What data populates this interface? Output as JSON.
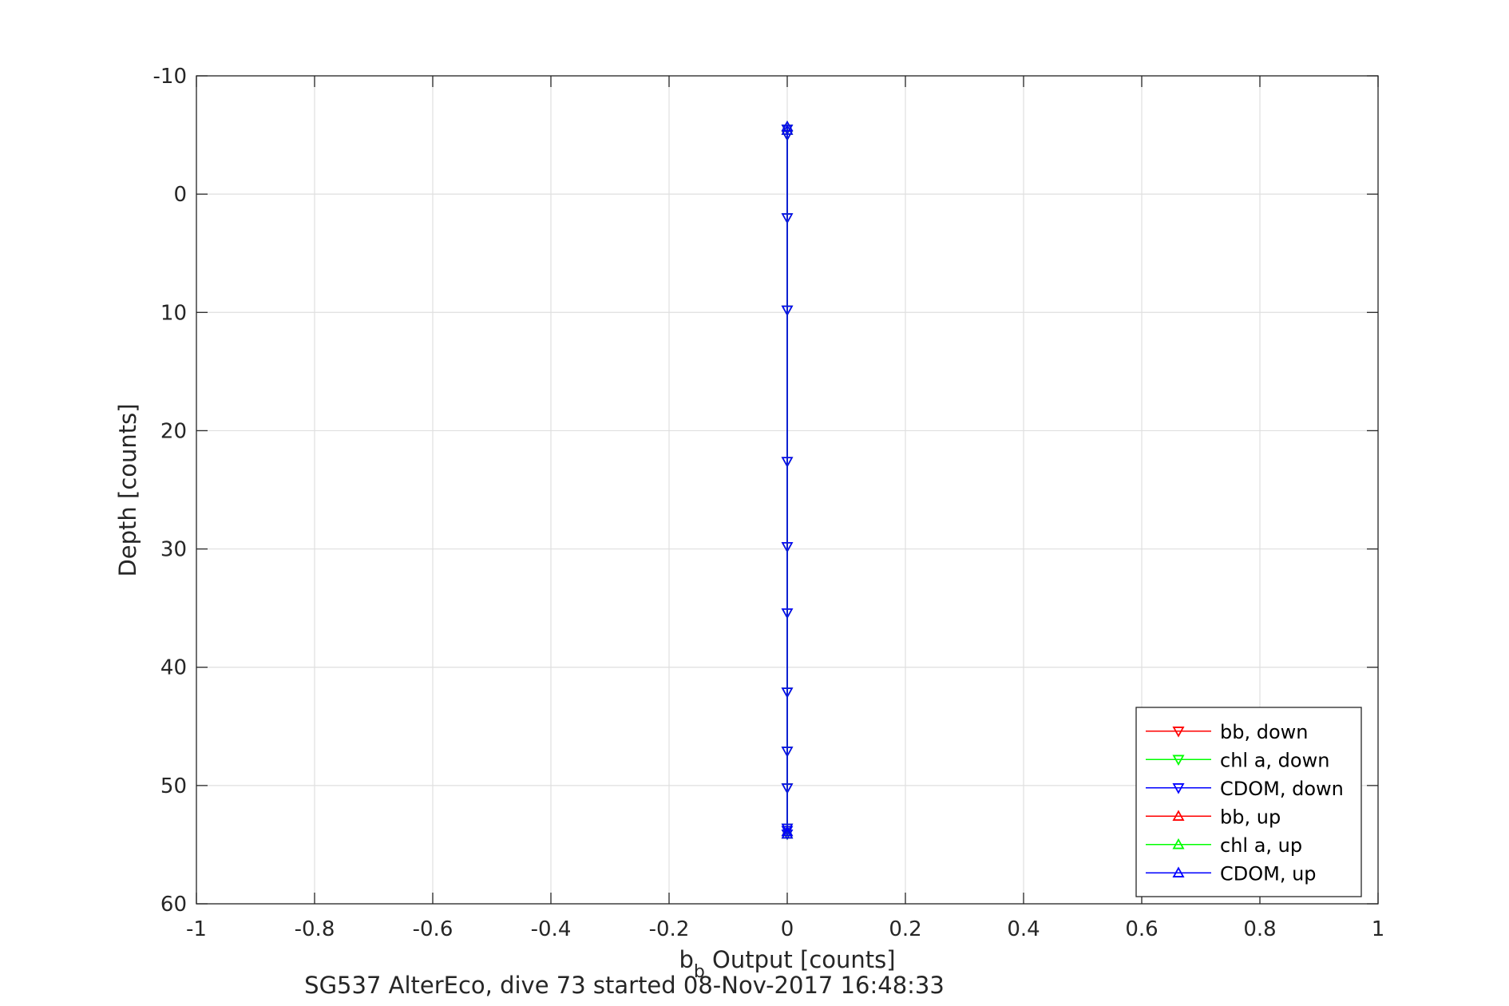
{
  "chart_data": {
    "type": "line",
    "title": "",
    "caption": "SG537 AlterEco, dive 73 started 08-Nov-2017 16:48:33",
    "xlabel": {
      "base": "b",
      "subscript": "b",
      "rest": " Output [counts]"
    },
    "ylabel": "Depth [counts]",
    "xlim": [
      -1,
      1
    ],
    "ylim": [
      -10,
      60
    ],
    "y_reversed": true,
    "grid": true,
    "legend_position": "bottom-right",
    "x_ticks": [
      -1,
      -0.8,
      -0.6,
      -0.4,
      -0.2,
      0,
      0.2,
      0.4,
      0.6,
      0.8,
      1
    ],
    "x_tick_labels": [
      "-1",
      "-0.8",
      "-0.6",
      "-0.4",
      "-0.2",
      "0",
      "0.2",
      "0.4",
      "0.6",
      "0.8",
      "1"
    ],
    "y_ticks": [
      -10,
      0,
      10,
      20,
      30,
      40,
      50,
      60
    ],
    "y_tick_labels": [
      "-10",
      "0",
      "10",
      "20",
      "30",
      "40",
      "50",
      "60"
    ],
    "series": [
      {
        "name": "bb, down",
        "color": "#ff0000",
        "marker": "triangle-down",
        "x": [
          0,
          0,
          0,
          0,
          0,
          0,
          0,
          0,
          0,
          0,
          0,
          0,
          0
        ],
        "y": [
          -5.5,
          -5.0,
          2.0,
          9.8,
          22.6,
          29.8,
          35.4,
          42.1,
          47.1,
          50.2,
          53.6,
          53.8,
          54.1
        ]
      },
      {
        "name": "chl a, down",
        "color": "#00ff00",
        "marker": "triangle-down",
        "x": [
          0,
          0,
          0,
          0,
          0,
          0,
          0,
          0,
          0,
          0,
          0,
          0,
          0
        ],
        "y": [
          -5.5,
          -5.0,
          2.0,
          9.8,
          22.6,
          29.8,
          35.4,
          42.1,
          47.1,
          50.2,
          53.6,
          53.8,
          54.1
        ]
      },
      {
        "name": "CDOM, down",
        "color": "#0000ff",
        "marker": "triangle-down",
        "x": [
          0,
          0,
          0,
          0,
          0,
          0,
          0,
          0,
          0,
          0,
          0,
          0,
          0
        ],
        "y": [
          -5.5,
          -5.0,
          2.0,
          9.8,
          22.6,
          29.8,
          35.4,
          42.1,
          47.1,
          50.2,
          53.6,
          53.8,
          54.1
        ]
      },
      {
        "name": "bb, up",
        "color": "#ff0000",
        "marker": "triangle-up",
        "x": [
          0,
          0,
          0,
          0
        ],
        "y": [
          53.9,
          54.1,
          -5.7,
          -5.4
        ]
      },
      {
        "name": "chl a, up",
        "color": "#00ff00",
        "marker": "triangle-up",
        "x": [
          0,
          0,
          0,
          0
        ],
        "y": [
          53.9,
          54.1,
          -5.7,
          -5.4
        ]
      },
      {
        "name": "CDOM, up",
        "color": "#0000ff",
        "marker": "triangle-up",
        "x": [
          0,
          0,
          0,
          0
        ],
        "y": [
          53.9,
          54.1,
          -5.7,
          -5.4
        ]
      }
    ]
  }
}
